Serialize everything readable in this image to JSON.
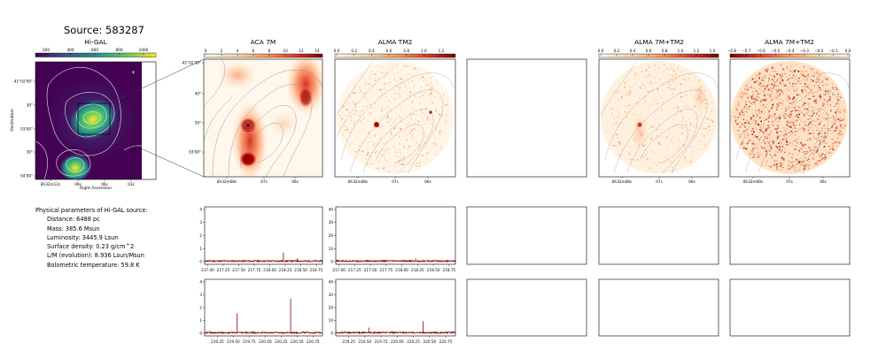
{
  "source_title": "Source: 583287",
  "colors": {
    "spectrum": "#8b0000",
    "contour": "#9a9a9a",
    "hot_high": "#7f0000",
    "hot_low": "#fff7ec"
  },
  "info": {
    "heading": "Physical parameters of Hi-GAL source:",
    "distance": "Distance: 6488 pc",
    "mass": "Mass: 385.6 Msun",
    "luminosity": "Luminosity: 3445.9 Lsun",
    "surface_density": "Surface density: 0.23 g/cm^2",
    "lm": "L/M (evolution): 8.936 Lsun/Msun",
    "tbol": "Bolometric temperature: 59.8 K"
  },
  "higal": {
    "title": "Hi-GAL",
    "colorbar_ticks": [
      "200",
      "400",
      "600",
      "800",
      "1000"
    ],
    "ylabel": "Declination",
    "xlabel": "Right Ascension",
    "yticks": [
      "-41°02'00\"",
      "30\"",
      "03'00\"",
      "30\"",
      "04'00\""
    ],
    "xticks": [
      "8h32m12s",
      "09s",
      "06s",
      "03s"
    ],
    "marker": "+"
  },
  "panels": {
    "aca7m": {
      "title": "ACA 7M",
      "cbar_ticks": [
        "0",
        "2",
        "4",
        "6",
        "8",
        "10",
        "12",
        "14"
      ],
      "yticks": [
        "-41°02'30\"",
        "40\"",
        "50\"",
        "03'00\""
      ],
      "xticks": [
        "8h32m08s",
        "07s",
        "06s"
      ]
    },
    "tm2": {
      "title": "ALMA TM2",
      "cbar_ticks": [
        "0.0",
        "0.2",
        "0.4",
        "0.6",
        "0.8",
        "1.0",
        "1.2"
      ],
      "xticks": [
        "8h32m08s",
        "07s",
        "06s"
      ]
    },
    "comb": {
      "title": "ALMA 7M+TM2",
      "cbar_ticks": [
        "0.0",
        "0.2",
        "0.4",
        "0.6",
        "0.8",
        "1.0",
        "1.2",
        "1.4"
      ],
      "xticks": [
        "8h32m08s",
        "07s",
        "06s"
      ]
    },
    "comb_neg": {
      "title": "ALMA 7M+TM2",
      "cbar_ticks": [
        "−0.8",
        "−0.7",
        "−0.6",
        "−0.5",
        "−0.4",
        "−0.3",
        "−0.2",
        "−0.1",
        "0.0"
      ],
      "xticks": [
        "8h32m08s",
        "07s",
        "06s"
      ]
    }
  },
  "chart_data": [
    {
      "type": "line",
      "panel": "ACA 7M spectrum, upper band",
      "x_ticks": [
        "217.00",
        "217.25",
        "217.50",
        "217.75",
        "218.00",
        "218.25",
        "218.50",
        "218.75"
      ],
      "y_ticks": [
        "0",
        "1",
        "2",
        "3",
        "4"
      ],
      "xlim": [
        216.95,
        218.85
      ],
      "ylim": [
        -0.2,
        4.2
      ],
      "baseline": 0.05,
      "peaks": [
        {
          "x": 218.22,
          "y": 0.7
        },
        {
          "x": 218.44,
          "y": 0.25
        },
        {
          "x": 217.6,
          "y": 0.12
        }
      ]
    },
    {
      "type": "line",
      "panel": "ALMA TM2 spectrum, upper band",
      "x_ticks": [
        "217.00",
        "217.25",
        "217.50",
        "217.75",
        "218.00",
        "218.25",
        "218.50",
        "218.75"
      ],
      "y_ticks": [
        "0",
        "10",
        "20",
        "30",
        "40"
      ],
      "xlim": [
        216.95,
        218.85
      ],
      "ylim": [
        -2,
        42
      ],
      "baseline": 0.5,
      "peaks": [
        {
          "x": 218.22,
          "y": 2.5
        },
        {
          "x": 217.3,
          "y": 1.0
        }
      ]
    },
    {
      "type": "line",
      "panel": "ACA 7M spectrum, lower band",
      "x_ticks": [
        "219.25",
        "219.50",
        "219.75",
        "220.00",
        "220.25",
        "220.50",
        "220.75"
      ],
      "y_ticks": [
        "0",
        "1",
        "2",
        "3",
        "4"
      ],
      "xlim": [
        219.05,
        220.9
      ],
      "ylim": [
        -0.2,
        4.2
      ],
      "baseline": 0.05,
      "peaks": [
        {
          "x": 219.56,
          "y": 1.55
        },
        {
          "x": 220.4,
          "y": 2.7
        },
        {
          "x": 219.8,
          "y": 0.2
        },
        {
          "x": 220.6,
          "y": 0.15
        }
      ]
    },
    {
      "type": "line",
      "panel": "ALMA TM2 spectrum, lower band",
      "x_ticks": [
        "219.25",
        "219.50",
        "219.75",
        "220.00",
        "220.25",
        "220.50",
        "220.75"
      ],
      "y_ticks": [
        "0",
        "10",
        "20",
        "30",
        "40"
      ],
      "xlim": [
        219.05,
        220.9
      ],
      "ylim": [
        -2,
        42
      ],
      "baseline": 0.5,
      "peaks": [
        {
          "x": 219.56,
          "y": 4.5
        },
        {
          "x": 220.4,
          "y": 9.5
        },
        {
          "x": 219.9,
          "y": 1.5
        }
      ]
    }
  ]
}
